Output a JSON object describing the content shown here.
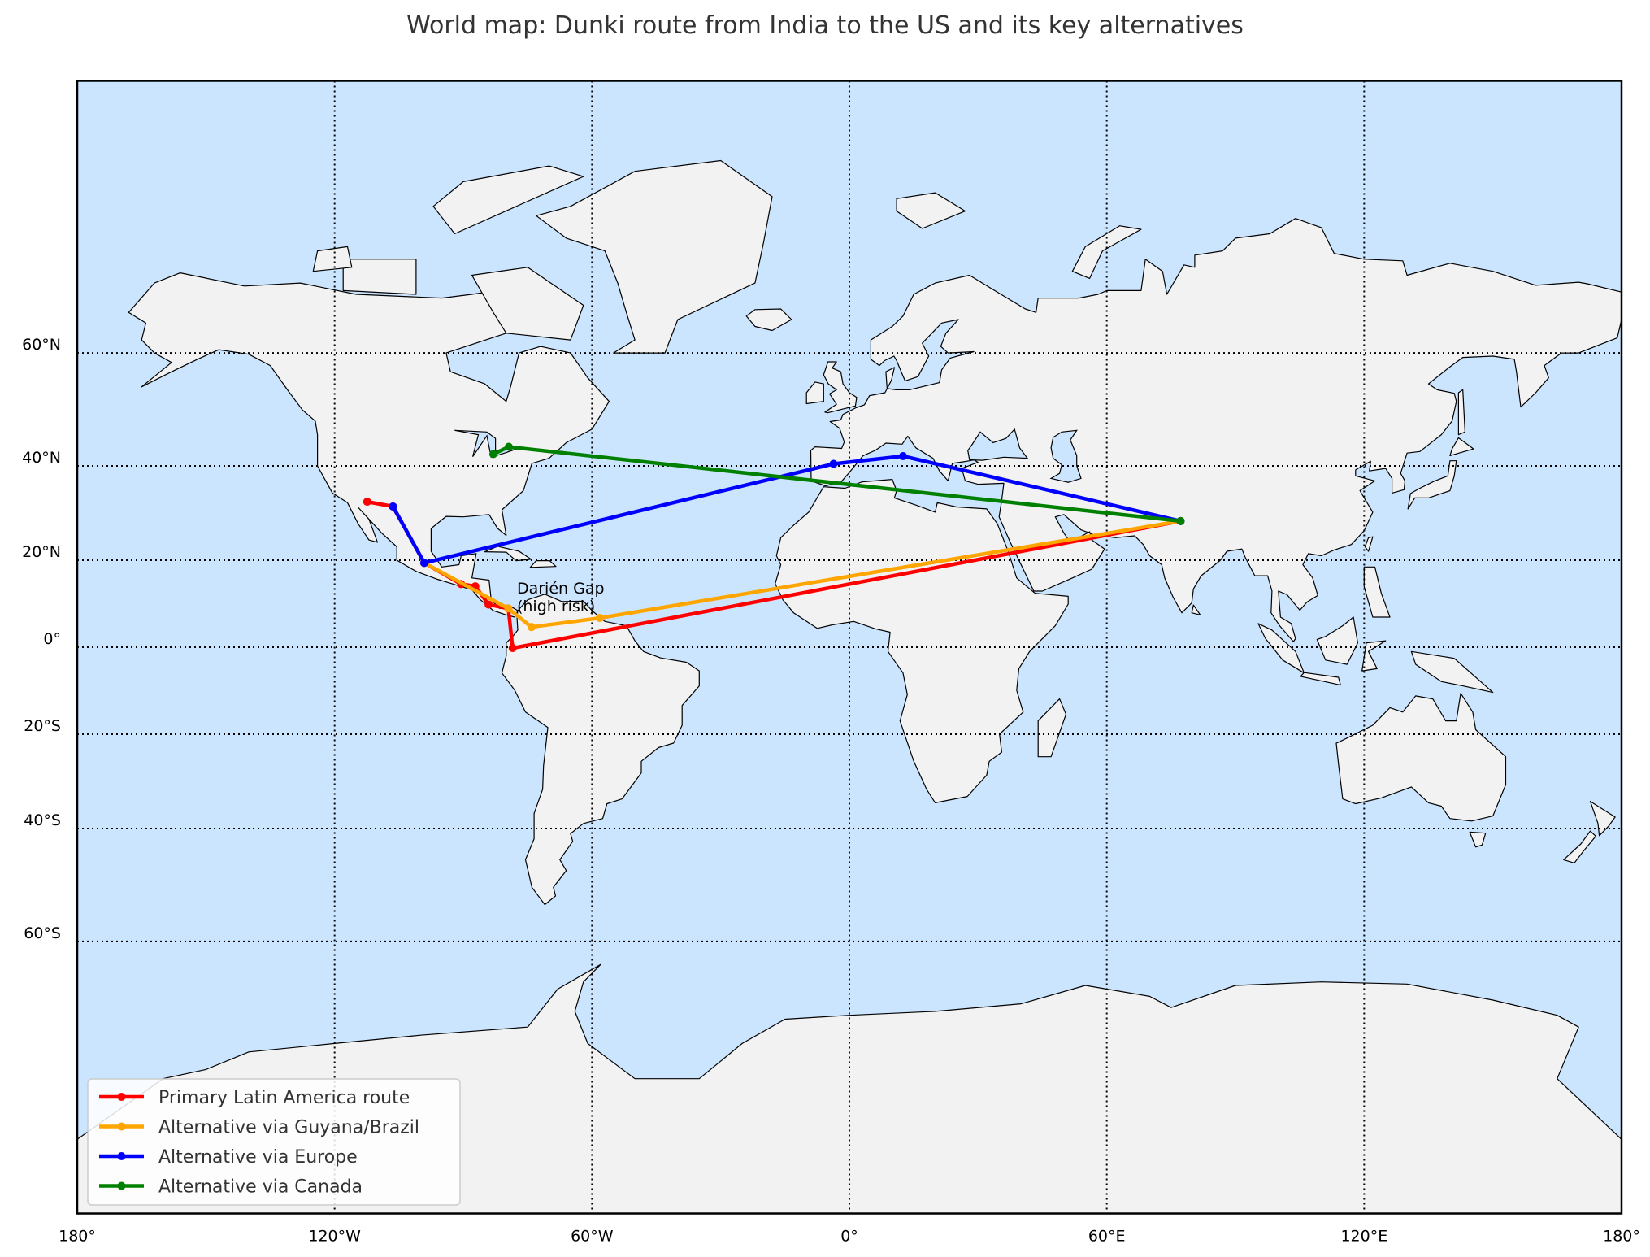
{
  "title": "World map: Dunki route from India to the US and its key alternatives",
  "chart_data": {
    "type": "map",
    "projection": "Miller cylindrical",
    "lon_range": [
      -180,
      180
    ],
    "lat_range": [
      -90,
      90
    ],
    "grid": true,
    "grid_style": "dotted",
    "colors": {
      "ocean": "#cce5ff",
      "land": "#f2f2f2",
      "coast": "#000000"
    },
    "lon_ticks": [
      {
        "value": -180,
        "label": "180°"
      },
      {
        "value": -120,
        "label": "120°W"
      },
      {
        "value": -60,
        "label": "60°W"
      },
      {
        "value": 0,
        "label": "0°"
      },
      {
        "value": 60,
        "label": "60°E"
      },
      {
        "value": 120,
        "label": "120°E"
      },
      {
        "value": 180,
        "label": "180°"
      }
    ],
    "lat_ticks": [
      {
        "value": 60,
        "label": "60°N"
      },
      {
        "value": 40,
        "label": "40°N"
      },
      {
        "value": 20,
        "label": "20°N"
      },
      {
        "value": 0,
        "label": "0°"
      },
      {
        "value": -20,
        "label": "20°S"
      },
      {
        "value": -40,
        "label": "40°S"
      },
      {
        "value": -60,
        "label": "60°S"
      }
    ],
    "legend_position": "lower-left",
    "series": [
      {
        "name": "Primary Latin America route",
        "color": "#ff0000",
        "points": [
          [
            77.2,
            28.6
          ],
          [
            -78.5,
            -0.2
          ],
          [
            -79.5,
            9.0
          ],
          [
            -84.1,
            9.9
          ],
          [
            -87.2,
            14.1
          ],
          [
            -90.5,
            14.6
          ],
          [
            -99.1,
            19.4
          ],
          [
            -106.4,
            31.7
          ],
          [
            -112.4,
            32.7
          ]
        ]
      },
      {
        "name": "Alternative via Guyana/Brazil",
        "color": "#ffa500",
        "points": [
          [
            77.2,
            28.6
          ],
          [
            -58.2,
            6.8
          ],
          [
            -74.1,
            4.7
          ],
          [
            -79.5,
            9.0
          ],
          [
            -99.1,
            19.4
          ]
        ]
      },
      {
        "name": "Alternative via Europe",
        "color": "#0000ff",
        "points": [
          [
            77.2,
            28.6
          ],
          [
            12.5,
            41.9
          ],
          [
            -3.7,
            40.4
          ],
          [
            -99.1,
            19.4
          ],
          [
            -106.4,
            31.7
          ]
        ]
      },
      {
        "name": "Alternative via Canada",
        "color": "#008000",
        "points": [
          [
            77.2,
            28.6
          ],
          [
            -79.4,
            43.7
          ],
          [
            -83.0,
            42.3
          ]
        ]
      }
    ],
    "annotations": [
      {
        "text_lines": [
          "Darién Gap",
          "(high risk)"
        ],
        "lon": -77.5,
        "lat": 8.3
      }
    ]
  }
}
